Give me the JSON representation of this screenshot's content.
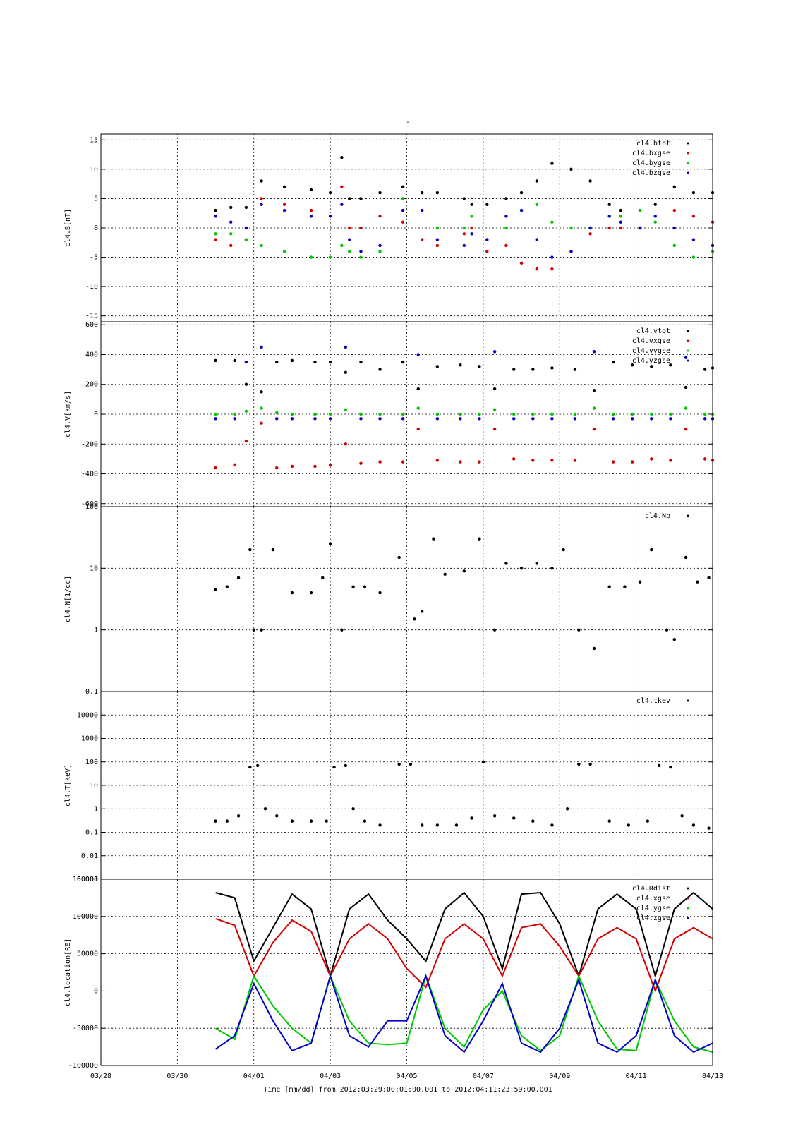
{
  "title": "-",
  "footer": {
    "time_label": "Time [mm/dd]  from 2012:03:29:00:01:00.001  to  2012:04:11:23:59:00.001"
  },
  "x_axis": {
    "range": [
      "03/28",
      "04/13"
    ],
    "ticks": [
      "03/28",
      "03/30",
      "04/01",
      "04/03",
      "04/05",
      "04/07",
      "04/09",
      "04/11",
      "04/13"
    ]
  },
  "colors": {
    "black": "#000000",
    "red": "#d40000",
    "green": "#00c800",
    "blue": "#0000c8"
  },
  "chart_data": [
    {
      "type": "scatter",
      "ylabel": "cl4.B[nT]",
      "ylim": [
        -16,
        16
      ],
      "yticks": [
        -15,
        -10,
        -5,
        0,
        5,
        10,
        15
      ],
      "ytick_labels": [
        "-15",
        "-10",
        "-5",
        "0",
        "5",
        "10",
        "15"
      ],
      "legend": [
        "cl4.btot",
        "cl4.bxgse",
        "cl4.bygse",
        "cl4.bzgse"
      ],
      "legend_position": "top-right",
      "grid": true,
      "series": [
        {
          "name": "cl4.btot",
          "color": "black",
          "x": [
            3.0,
            3.4,
            3.8,
            4.2,
            4.8,
            5.5,
            6.0,
            6.3,
            6.5,
            6.8,
            7.3,
            7.9,
            8.4,
            8.8,
            9.5,
            9.7,
            10.1,
            10.6,
            11.0,
            11.4,
            11.8,
            12.3,
            12.8,
            13.3,
            13.6,
            14.1,
            14.5,
            15.0,
            15.5,
            16.0
          ],
          "y": [
            3,
            3.5,
            3.5,
            8,
            7,
            6.5,
            6,
            12,
            5,
            5,
            6,
            7,
            6,
            6,
            5,
            4,
            4,
            5,
            6,
            8,
            11,
            10,
            8,
            4,
            3,
            3,
            4,
            7,
            6,
            6
          ]
        },
        {
          "name": "cl4.bxgse",
          "color": "red",
          "x": [
            3.0,
            3.4,
            3.8,
            4.2,
            4.8,
            5.5,
            6.0,
            6.3,
            6.5,
            6.8,
            7.3,
            7.9,
            8.4,
            8.8,
            9.5,
            9.7,
            10.1,
            10.6,
            11.0,
            11.4,
            11.8,
            12.3,
            12.8,
            13.3,
            13.6,
            14.1,
            14.5,
            15.0,
            15.5,
            16.0
          ],
          "y": [
            -2,
            -3,
            -2,
            5,
            4,
            3,
            2,
            7,
            0,
            0,
            2,
            1,
            -2,
            -3,
            -1,
            0,
            -4,
            -3,
            -6,
            -7,
            -7,
            -4,
            -1,
            0,
            0,
            0,
            2,
            3,
            2,
            1
          ]
        },
        {
          "name": "cl4.bygse",
          "color": "green",
          "x": [
            3.0,
            3.4,
            3.8,
            4.2,
            4.8,
            5.5,
            6.0,
            6.3,
            6.5,
            6.8,
            7.3,
            7.9,
            8.4,
            8.8,
            9.5,
            9.7,
            10.1,
            10.6,
            11.0,
            11.4,
            11.8,
            12.3,
            12.8,
            13.3,
            13.6,
            14.1,
            14.5,
            15.0,
            15.5,
            16.0
          ],
          "y": [
            -1,
            -1,
            -2,
            -3,
            -4,
            -5,
            -5,
            -3,
            -4,
            -5,
            -4,
            5,
            3,
            0,
            0,
            2,
            -2,
            0,
            3,
            4,
            1,
            0,
            0,
            2,
            2,
            3,
            1,
            -3,
            -5,
            -4
          ]
        },
        {
          "name": "cl4.bzgse",
          "color": "blue",
          "x": [
            3.0,
            3.4,
            3.8,
            4.2,
            4.8,
            5.5,
            6.0,
            6.3,
            6.5,
            6.8,
            7.3,
            7.9,
            8.4,
            8.8,
            9.5,
            9.7,
            10.1,
            10.6,
            11.0,
            11.4,
            11.8,
            12.3,
            12.8,
            13.3,
            13.6,
            14.1,
            14.5,
            15.0,
            15.5,
            16.0
          ],
          "y": [
            2,
            1,
            0,
            4,
            3,
            2,
            2,
            4,
            -2,
            -4,
            -3,
            3,
            3,
            -2,
            -3,
            -1,
            -2,
            2,
            3,
            -2,
            -5,
            -4,
            0,
            2,
            1,
            0,
            2,
            0,
            -2,
            -3
          ]
        }
      ]
    },
    {
      "type": "scatter",
      "ylabel": "cl4.V[km/s]",
      "ylim": [
        -620,
        620
      ],
      "yticks": [
        -600,
        -400,
        -200,
        0,
        200,
        400,
        600
      ],
      "ytick_labels": [
        "-600",
        "-400",
        "-200",
        "0",
        "200",
        "400",
        "600"
      ],
      "legend": [
        "cl4.vtot",
        "cl4.vxgse",
        "cl4.vygse",
        "cl4.vzgse"
      ],
      "legend_position": "top-right",
      "grid": true,
      "series": [
        {
          "name": "cl4.vtot",
          "color": "black",
          "x": [
            3.0,
            3.5,
            3.8,
            4.2,
            4.6,
            5.0,
            5.6,
            6.0,
            6.4,
            6.8,
            7.3,
            7.9,
            8.3,
            8.8,
            9.4,
            9.9,
            10.3,
            10.8,
            11.3,
            11.8,
            12.4,
            12.9,
            13.4,
            13.9,
            14.4,
            14.9,
            15.3,
            15.8,
            16.0
          ],
          "y": [
            360,
            360,
            200,
            150,
            350,
            360,
            350,
            350,
            280,
            350,
            300,
            350,
            170,
            320,
            330,
            320,
            170,
            300,
            300,
            310,
            300,
            160,
            350,
            330,
            320,
            330,
            180,
            300,
            310
          ]
        },
        {
          "name": "cl4.vxgse",
          "color": "red",
          "x": [
            3.0,
            3.5,
            3.8,
            4.2,
            4.6,
            5.0,
            5.6,
            6.0,
            6.4,
            6.8,
            7.3,
            7.9,
            8.3,
            8.8,
            9.4,
            9.9,
            10.3,
            10.8,
            11.3,
            11.8,
            12.4,
            12.9,
            13.4,
            13.9,
            14.4,
            14.9,
            15.3,
            15.8,
            16.0
          ],
          "y": [
            -360,
            -340,
            -180,
            -60,
            -360,
            -350,
            -350,
            -340,
            -200,
            -330,
            -320,
            -320,
            -100,
            -310,
            -320,
            -320,
            -100,
            -300,
            -310,
            -310,
            -310,
            -100,
            -320,
            -320,
            -300,
            -310,
            -100,
            -300,
            -310
          ]
        },
        {
          "name": "cl4.vygse",
          "color": "green",
          "x": [
            3.0,
            3.5,
            3.8,
            4.2,
            4.6,
            5.0,
            5.6,
            6.0,
            6.4,
            6.8,
            7.3,
            7.9,
            8.3,
            8.8,
            9.4,
            9.9,
            10.3,
            10.8,
            11.3,
            11.8,
            12.4,
            12.9,
            13.4,
            13.9,
            14.4,
            14.9,
            15.3,
            15.8,
            16.0
          ],
          "y": [
            0,
            0,
            20,
            40,
            10,
            0,
            0,
            0,
            30,
            0,
            0,
            0,
            40,
            0,
            0,
            0,
            30,
            0,
            0,
            0,
            0,
            40,
            0,
            0,
            0,
            0,
            40,
            0,
            0
          ]
        },
        {
          "name": "cl4.vzgse",
          "color": "blue",
          "x": [
            3.0,
            3.5,
            3.8,
            4.2,
            4.6,
            5.0,
            5.6,
            6.0,
            6.4,
            6.8,
            7.3,
            7.9,
            8.3,
            8.8,
            9.4,
            9.9,
            10.3,
            10.8,
            11.3,
            11.8,
            12.4,
            12.9,
            13.4,
            13.9,
            14.4,
            14.9,
            15.3,
            15.8,
            16.0
          ],
          "y": [
            -30,
            -30,
            350,
            450,
            -30,
            -30,
            -30,
            -30,
            450,
            -30,
            -30,
            -30,
            400,
            -30,
            -30,
            -30,
            420,
            -30,
            -30,
            -30,
            -30,
            420,
            -30,
            -30,
            -30,
            -30,
            380,
            -30,
            -30
          ]
        }
      ]
    },
    {
      "type": "scatter",
      "ylabel": "cl4.N[1/cc]",
      "yscale": "log",
      "ylim": [
        0.1,
        100
      ],
      "yticks": [
        0.1,
        1,
        10,
        100
      ],
      "ytick_labels": [
        "0.1",
        "1",
        "10",
        "100"
      ],
      "legend": [
        "cl4.Np"
      ],
      "legend_position": "top-right",
      "grid": true,
      "series": [
        {
          "name": "cl4.Np",
          "color": "black",
          "x": [
            3.0,
            3.3,
            3.6,
            3.9,
            4.0,
            4.2,
            4.5,
            5.0,
            5.5,
            5.8,
            6.0,
            6.3,
            6.6,
            6.9,
            7.3,
            7.8,
            8.2,
            8.4,
            8.7,
            9.0,
            9.5,
            9.9,
            10.3,
            10.6,
            11.0,
            11.4,
            11.8,
            12.1,
            12.5,
            12.9,
            13.3,
            13.7,
            14.1,
            14.4,
            14.8,
            15.0,
            15.3,
            15.6,
            15.9
          ],
          "y": [
            4.5,
            5,
            7,
            20,
            1,
            1,
            20,
            4,
            4,
            7,
            25,
            1,
            5,
            5,
            4,
            15,
            1.5,
            2,
            30,
            8,
            9,
            30,
            1,
            12,
            10,
            12,
            10,
            20,
            1,
            0.5,
            5,
            5,
            6,
            20,
            1,
            0.7,
            15,
            6,
            7
          ]
        }
      ]
    },
    {
      "type": "scatter",
      "ylabel": "cl4.T[keV]",
      "yscale": "log",
      "ylim": [
        0.001,
        100000
      ],
      "yticks": [
        0.001,
        0.01,
        0.1,
        1,
        10,
        100,
        1000,
        10000
      ],
      "ytick_labels": [
        "0.001",
        "0.01",
        "0.1",
        "1",
        "10",
        "100",
        "1000",
        "10000"
      ],
      "legend": [
        "cl4.tkev"
      ],
      "legend_position": "top-right",
      "grid": true,
      "series": [
        {
          "name": "cl4.tkev",
          "color": "black",
          "x": [
            3.0,
            3.3,
            3.6,
            3.9,
            4.1,
            4.3,
            4.6,
            5.0,
            5.5,
            5.9,
            6.1,
            6.4,
            6.6,
            6.9,
            7.3,
            7.8,
            8.1,
            8.4,
            8.8,
            9.3,
            9.7,
            10.0,
            10.3,
            10.8,
            11.3,
            11.8,
            12.2,
            12.5,
            12.8,
            13.3,
            13.8,
            14.3,
            14.6,
            14.9,
            15.2,
            15.5,
            15.9
          ],
          "y": [
            0.3,
            0.3,
            0.5,
            60,
            70,
            1,
            0.5,
            0.3,
            0.3,
            0.3,
            60,
            70,
            1,
            0.3,
            0.2,
            80,
            80,
            0.2,
            0.2,
            0.2,
            0.4,
            100,
            0.5,
            0.4,
            0.3,
            0.2,
            1,
            80,
            80,
            0.3,
            0.2,
            0.3,
            70,
            60,
            0.5,
            0.2,
            0.15
          ]
        }
      ]
    },
    {
      "type": "line",
      "ylabel": "cl4.location[RE]",
      "ylim": [
        -100000,
        150000
      ],
      "yticks": [
        -100000,
        -50000,
        0,
        50000,
        100000,
        150000
      ],
      "ytick_labels": [
        "-100000",
        "-50000",
        "0",
        "50000",
        "100000",
        "150000"
      ],
      "legend": [
        "cl4.Rdist",
        "cl4.xgse",
        "cl4.ygse",
        "cl4.zgse"
      ],
      "legend_position": "top-right",
      "grid": true,
      "series": [
        {
          "name": "cl4.Rdist",
          "color": "black",
          "x": [
            3.0,
            3.5,
            4.0,
            4.5,
            5.0,
            5.5,
            6.0,
            6.5,
            7.0,
            7.5,
            8.0,
            8.5,
            9.0,
            9.5,
            10.0,
            10.5,
            11.0,
            11.5,
            12.0,
            12.5,
            13.0,
            13.5,
            14.0,
            14.5,
            15.0,
            15.5,
            16.0
          ],
          "y": [
            132000,
            125000,
            40000,
            85000,
            130000,
            110000,
            20000,
            110000,
            130000,
            95000,
            70000,
            40000,
            110000,
            132000,
            100000,
            30000,
            130000,
            132000,
            90000,
            20000,
            110000,
            130000,
            110000,
            20000,
            110000,
            132000,
            110000
          ]
        },
        {
          "name": "cl4.xgse",
          "color": "red",
          "x": [
            3.0,
            3.5,
            4.0,
            4.5,
            5.0,
            5.5,
            6.0,
            6.5,
            7.0,
            7.5,
            8.0,
            8.5,
            9.0,
            9.5,
            10.0,
            10.5,
            11.0,
            11.5,
            12.0,
            12.5,
            13.0,
            13.5,
            14.0,
            14.5,
            15.0,
            15.5,
            16.0
          ],
          "y": [
            97000,
            88000,
            20000,
            65000,
            95000,
            80000,
            20000,
            70000,
            90000,
            70000,
            30000,
            5000,
            70000,
            90000,
            70000,
            20000,
            85000,
            90000,
            60000,
            20000,
            70000,
            85000,
            70000,
            0,
            70000,
            85000,
            70000
          ]
        },
        {
          "name": "cl4.ygse",
          "color": "green",
          "x": [
            3.0,
            3.5,
            4.0,
            4.5,
            5.0,
            5.5,
            6.0,
            6.5,
            7.0,
            7.5,
            8.0,
            8.5,
            9.0,
            9.5,
            10.0,
            10.5,
            11.0,
            11.5,
            12.0,
            12.5,
            13.0,
            13.5,
            14.0,
            14.5,
            15.0,
            15.5,
            16.0
          ],
          "y": [
            -50000,
            -65000,
            20000,
            -20000,
            -50000,
            -70000,
            20000,
            -40000,
            -70000,
            -72000,
            -70000,
            20000,
            -50000,
            -75000,
            -25000,
            0,
            -60000,
            -80000,
            -60000,
            20000,
            -40000,
            -78000,
            -80000,
            15000,
            -40000,
            -75000,
            -82000
          ]
        },
        {
          "name": "cl4.zgse",
          "color": "blue",
          "x": [
            3.0,
            3.5,
            4.0,
            4.5,
            5.0,
            5.5,
            6.0,
            6.5,
            7.0,
            7.5,
            8.0,
            8.5,
            9.0,
            9.5,
            10.0,
            10.5,
            11.0,
            11.5,
            12.0,
            12.5,
            13.0,
            13.5,
            14.0,
            14.5,
            15.0,
            15.5,
            16.0
          ],
          "y": [
            -78000,
            -60000,
            10000,
            -40000,
            -80000,
            -70000,
            20000,
            -60000,
            -75000,
            -40000,
            -40000,
            20000,
            -60000,
            -82000,
            -40000,
            10000,
            -70000,
            -82000,
            -50000,
            15000,
            -70000,
            -82000,
            -60000,
            15000,
            -60000,
            -82000,
            -70000
          ]
        }
      ]
    }
  ]
}
